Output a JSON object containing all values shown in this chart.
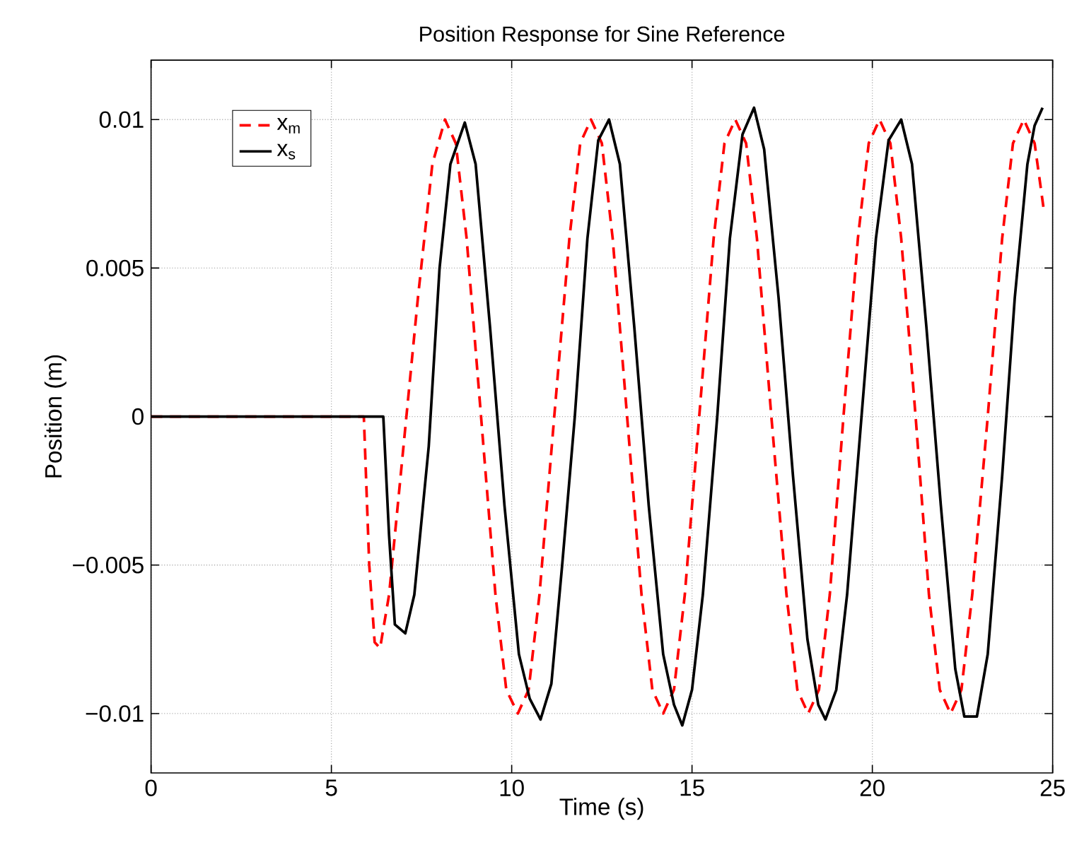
{
  "chart_data": {
    "type": "line",
    "title": "Position Response for Sine Reference",
    "xlabel": "Time (s)",
    "ylabel": "Position (m)",
    "xlim": [
      0,
      25
    ],
    "ylim": [
      -0.012,
      0.012
    ],
    "xticks": [
      0,
      5,
      10,
      15,
      20,
      25
    ],
    "yticks": [
      {
        "value": -0.01,
        "label": "−0.01"
      },
      {
        "value": -0.005,
        "label": "−0.005"
      },
      0,
      0.005,
      0.01
    ],
    "grid": true,
    "legend": "top left",
    "series": [
      {
        "name": "x$_{m}$",
        "color": "#ff0000",
        "line_style": "dashed",
        "x": [
          0,
          5.9,
          6.05,
          6.2,
          6.35,
          6.6,
          7.0,
          7.4,
          7.8,
          8.15,
          8.45,
          8.75,
          9.15,
          9.55,
          9.85,
          10.17,
          10.47,
          10.77,
          11.18,
          11.6,
          11.9,
          12.2,
          12.5,
          12.8,
          13.2,
          13.6,
          13.9,
          14.2,
          14.5,
          14.8,
          15.2,
          15.6,
          15.9,
          16.2,
          16.5,
          16.8,
          17.2,
          17.62,
          17.92,
          18.22,
          18.52,
          18.82,
          19.2,
          19.6,
          19.9,
          20.2,
          20.5,
          20.8,
          21.2,
          21.57,
          21.87,
          22.17,
          22.47,
          22.77,
          23.2,
          23.6,
          23.9,
          24.2,
          24.5,
          24.75
        ],
        "values": [
          0,
          0,
          -0.005,
          -0.0076,
          -0.0078,
          -0.006,
          -0.001,
          0.004,
          0.0085,
          0.01,
          0.0092,
          0.006,
          0,
          -0.006,
          -0.0092,
          -0.01,
          -0.0092,
          -0.006,
          0,
          0.006,
          0.0092,
          0.01,
          0.0092,
          0.006,
          0,
          -0.006,
          -0.0092,
          -0.01,
          -0.0092,
          -0.006,
          0,
          0.006,
          0.0092,
          0.01,
          0.0092,
          0.006,
          0,
          -0.006,
          -0.0092,
          -0.01,
          -0.0092,
          -0.006,
          0,
          0.006,
          0.0092,
          0.01,
          0.0092,
          0.006,
          0,
          -0.006,
          -0.0092,
          -0.01,
          -0.0092,
          -0.006,
          0,
          0.006,
          0.0092,
          0.01,
          0.0092,
          0.007
        ]
      },
      {
        "name": "x$_{s}$",
        "color": "#000000",
        "line_style": "solid",
        "x": [
          0,
          6.44,
          6.6,
          6.76,
          7.05,
          7.3,
          7.7,
          8.0,
          8.3,
          8.7,
          9.0,
          9.4,
          9.8,
          10.2,
          10.5,
          10.8,
          11.1,
          11.4,
          11.75,
          12.1,
          12.4,
          12.7,
          13.0,
          13.4,
          13.8,
          14.2,
          14.5,
          14.73,
          15.0,
          15.3,
          15.7,
          16.05,
          16.4,
          16.72,
          17.0,
          17.4,
          17.8,
          18.2,
          18.5,
          18.7,
          19.0,
          19.3,
          19.7,
          20.1,
          20.45,
          20.8,
          21.1,
          21.5,
          21.9,
          22.3,
          22.55,
          22.9,
          23.2,
          23.6,
          23.95,
          24.3,
          24.5,
          24.72
        ],
        "values": [
          0,
          0,
          -0.004,
          -0.007,
          -0.0073,
          -0.006,
          -0.001,
          0.005,
          0.0085,
          0.0099,
          0.0085,
          0.003,
          -0.003,
          -0.008,
          -0.0095,
          -0.0102,
          -0.009,
          -0.005,
          0,
          0.006,
          0.0093,
          0.01,
          0.0085,
          0.003,
          -0.003,
          -0.008,
          -0.0097,
          -0.0104,
          -0.0092,
          -0.006,
          0,
          0.006,
          0.0095,
          0.0104,
          0.009,
          0.004,
          -0.002,
          -0.0075,
          -0.0097,
          -0.0102,
          -0.0092,
          -0.006,
          0,
          0.006,
          0.0093,
          0.01,
          0.0085,
          0.003,
          -0.003,
          -0.0085,
          -0.0101,
          -0.0101,
          -0.008,
          -0.002,
          0.004,
          0.0085,
          0.0098,
          0.0104
        ]
      }
    ]
  }
}
